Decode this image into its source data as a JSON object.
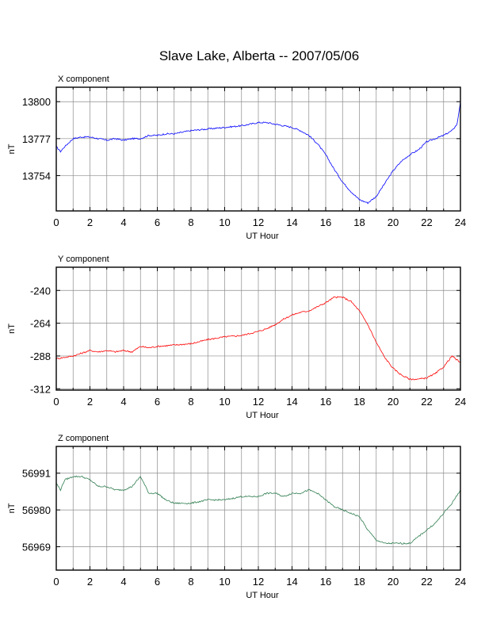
{
  "title": "Slave Lake, Alberta -- 2007/05/06",
  "chart_data": [
    {
      "type": "line",
      "label": "X component",
      "title": "X component",
      "xlabel": "UT Hour",
      "ylabel": "nT",
      "xlim": [
        0,
        24
      ],
      "ylim": [
        13732,
        13809
      ],
      "xticks": [
        0,
        2,
        4,
        6,
        8,
        10,
        12,
        14,
        16,
        18,
        20,
        22,
        24
      ],
      "yticks": [
        13754,
        13777,
        13800
      ],
      "grid": true,
      "color": "#0000ff",
      "series": [
        {
          "x": [
            0,
            0.25,
            0.5,
            1,
            1.5,
            2,
            2.5,
            3,
            3.5,
            4,
            4.5,
            5,
            5.5,
            6,
            6.5,
            7,
            8,
            9,
            10,
            11,
            12,
            12.5,
            13,
            13.5,
            14,
            14.5,
            15,
            15.5,
            16,
            16.5,
            17,
            17.5,
            18,
            18.5,
            19,
            19.5,
            20,
            20.5,
            21,
            21.5,
            22,
            22.5,
            23,
            23.5,
            23.8,
            24
          ],
          "values": [
            13772,
            13769,
            13772,
            13777,
            13778,
            13778,
            13777,
            13776,
            13777,
            13776,
            13777,
            13777,
            13779,
            13779,
            13780,
            13780,
            13782,
            13783,
            13784,
            13785,
            13787,
            13787,
            13786,
            13785,
            13784,
            13782,
            13779,
            13774,
            13767,
            13758,
            13750,
            13744,
            13739,
            13737,
            13741,
            13749,
            13757,
            13763,
            13767,
            13770,
            13775,
            13777,
            13779,
            13782,
            13786,
            13800
          ]
        }
      ]
    },
    {
      "type": "line",
      "label": "Y component",
      "title": "Y component",
      "xlabel": "UT Hour",
      "ylabel": "nT",
      "xlim": [
        0,
        24
      ],
      "ylim": [
        -313,
        -223
      ],
      "xticks": [
        0,
        2,
        4,
        6,
        8,
        10,
        12,
        14,
        16,
        18,
        20,
        22,
        24
      ],
      "yticks": [
        -240,
        -264,
        -288,
        -312
      ],
      "grid": true,
      "color": "#ff0000",
      "series": [
        {
          "x": [
            0,
            0.5,
            1,
            1.5,
            2,
            2.5,
            3,
            3.5,
            4,
            4.5,
            5,
            5.5,
            6,
            7,
            8,
            9,
            10,
            11,
            12,
            12.5,
            13,
            13.5,
            14,
            14.5,
            15,
            15.5,
            16,
            16.5,
            17,
            17.5,
            18,
            18.5,
            19,
            19.5,
            20,
            20.5,
            21,
            21.5,
            22,
            22.5,
            23,
            23.5,
            24
          ],
          "values": [
            -290,
            -289,
            -288,
            -286,
            -284,
            -285,
            -284,
            -285,
            -284,
            -285,
            -281,
            -282,
            -281,
            -280,
            -279,
            -276,
            -274,
            -273,
            -270,
            -268,
            -265,
            -261,
            -258,
            -256,
            -255,
            -252,
            -249,
            -245,
            -245,
            -248,
            -255,
            -265,
            -278,
            -289,
            -297,
            -302,
            -305,
            -305,
            -304,
            -301,
            -296,
            -288,
            -293
          ]
        }
      ]
    },
    {
      "type": "line",
      "label": "Z component",
      "title": "Z component",
      "xlabel": "UT Hour",
      "ylabel": "nT",
      "xlim": [
        0,
        24
      ],
      "ylim": [
        56962,
        56999
      ],
      "xticks": [
        0,
        2,
        4,
        6,
        8,
        10,
        12,
        14,
        16,
        18,
        20,
        22,
        24
      ],
      "yticks": [
        56969,
        56980,
        56991
      ],
      "grid": true,
      "color": "#2e7d4f",
      "series": [
        {
          "x": [
            0,
            0.25,
            0.5,
            1,
            1.5,
            2,
            2.5,
            3,
            3.5,
            4,
            4.5,
            5,
            5.5,
            6,
            6.5,
            7,
            8,
            9,
            10,
            11,
            12,
            12.5,
            13,
            13.5,
            14,
            14.5,
            15,
            15.5,
            16,
            16.5,
            17,
            17.5,
            18,
            18.5,
            19,
            19.5,
            20,
            20.5,
            21,
            21.5,
            22,
            22.5,
            23,
            23.5,
            24
          ],
          "values": [
            56988,
            56986,
            56989,
            56990,
            56990,
            56989,
            56987,
            56987,
            56986,
            56986,
            56987,
            56990,
            56985,
            56985,
            56983,
            56982,
            56982,
            56983,
            56983,
            56984,
            56984,
            56985,
            56985,
            56984,
            56985,
            56985,
            56986,
            56985,
            56983,
            56981,
            56980,
            56979,
            56978,
            56974,
            56971,
            56970,
            56970,
            56970,
            56970,
            56972,
            56974,
            56976,
            56979,
            56982,
            56986
          ]
        }
      ]
    }
  ]
}
